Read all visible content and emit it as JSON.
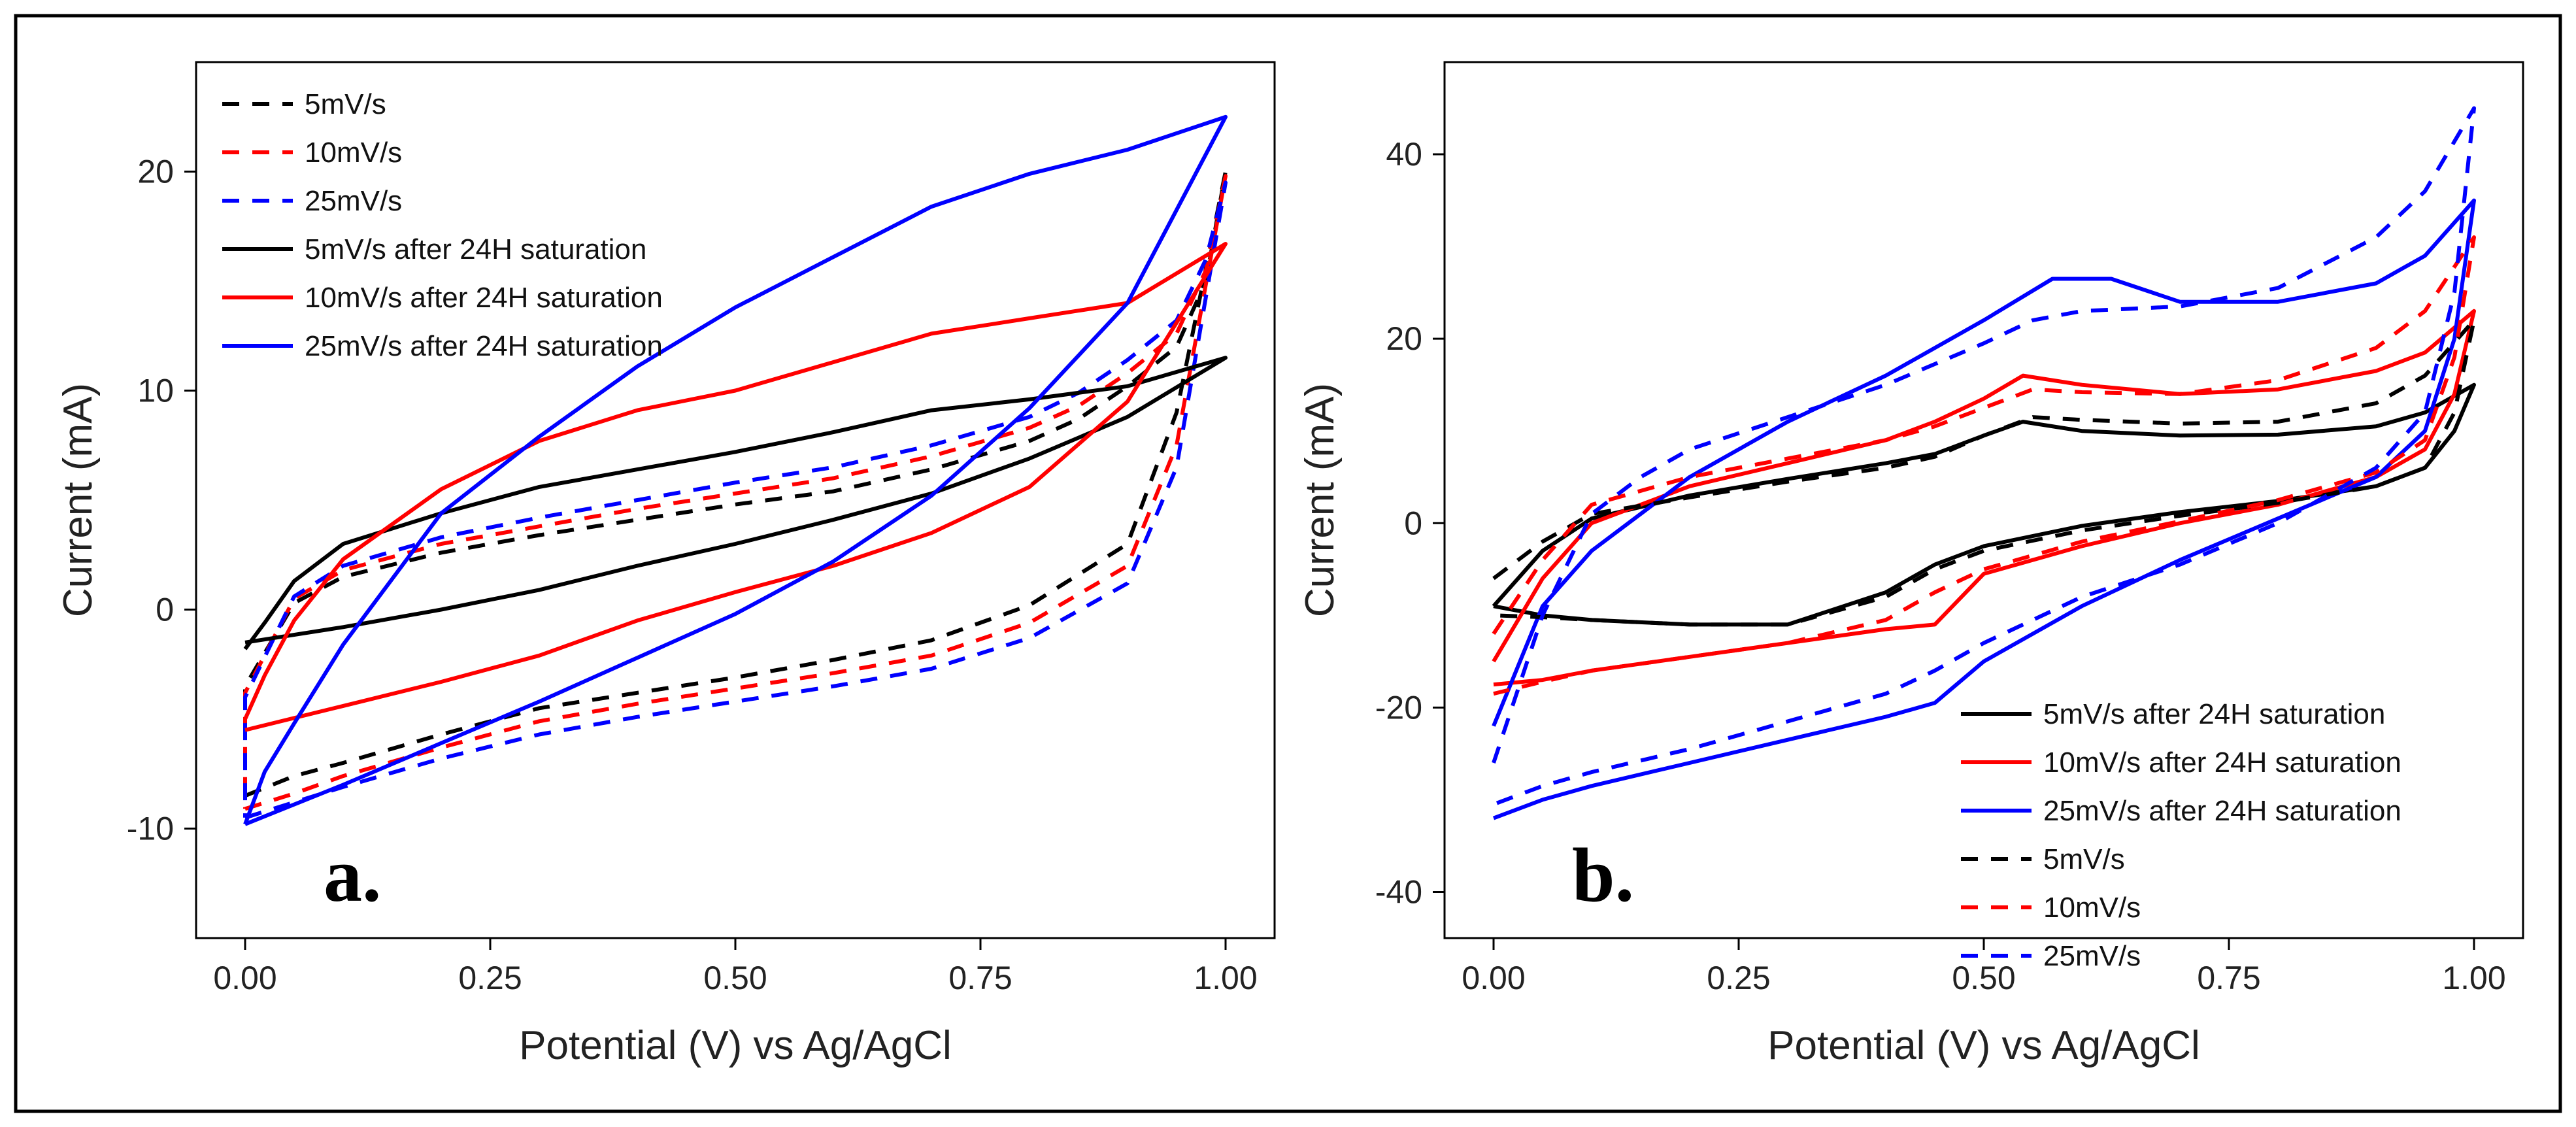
{
  "figure": {
    "outer_border_color": "#000000"
  },
  "colors": {
    "black": "#000000",
    "red": "#ff0000",
    "blue": "#0000ff"
  },
  "chart_data": [
    {
      "id": "panel-a",
      "type": "line",
      "panel_label": "a.",
      "title": "",
      "xlabel": "Potential (V) vs Ag/AgCl",
      "ylabel": "Current (mA)",
      "xlim": [
        -0.05,
        1.05
      ],
      "ylim": [
        -15,
        25
      ],
      "xticks": [
        "0.00",
        "0.25",
        "0.50",
        "0.75",
        "1.00"
      ],
      "xtick_values": [
        0,
        0.25,
        0.5,
        0.75,
        1.0
      ],
      "yticks": [
        "-10",
        "0",
        "10",
        "20"
      ],
      "ytick_values": [
        -10,
        0,
        10,
        20
      ],
      "grid": false,
      "legend_position": "top-left",
      "series": [
        {
          "name": "5mV/s",
          "color": "#000000",
          "dash": true,
          "x": [
            0.0,
            0.05,
            0.1,
            0.2,
            0.3,
            0.4,
            0.5,
            0.6,
            0.7,
            0.8,
            0.9,
            0.95,
            1.0,
            0.98,
            0.95,
            0.9,
            0.85,
            0.8,
            0.7,
            0.6,
            0.5,
            0.4,
            0.3,
            0.2,
            0.1,
            0.05,
            0.0,
            0.0
          ],
          "y": [
            -8.5,
            -7.6,
            -7.0,
            -5.7,
            -4.5,
            -3.8,
            -3.1,
            -2.3,
            -1.4,
            0.2,
            3.0,
            9.0,
            20.0,
            15.0,
            12.0,
            10.2,
            8.7,
            7.7,
            6.4,
            5.4,
            4.8,
            4.1,
            3.4,
            2.6,
            1.5,
            0.3,
            -3.5,
            -8.5
          ]
        },
        {
          "name": "10mV/s",
          "color": "#ff0000",
          "dash": true,
          "x": [
            0.0,
            0.05,
            0.1,
            0.2,
            0.3,
            0.4,
            0.5,
            0.6,
            0.7,
            0.8,
            0.9,
            0.95,
            1.0,
            0.98,
            0.95,
            0.9,
            0.85,
            0.8,
            0.7,
            0.6,
            0.5,
            0.4,
            0.3,
            0.2,
            0.1,
            0.05,
            0.0,
            0.0
          ],
          "y": [
            -9.1,
            -8.4,
            -7.6,
            -6.3,
            -5.1,
            -4.3,
            -3.6,
            -2.9,
            -2.1,
            -0.6,
            2.0,
            7.5,
            19.8,
            15.5,
            12.6,
            10.8,
            9.3,
            8.3,
            7.0,
            6.0,
            5.3,
            4.6,
            3.8,
            3.0,
            1.8,
            0.5,
            -3.8,
            -9.1
          ]
        },
        {
          "name": "25mV/s",
          "color": "#0000ff",
          "dash": true,
          "x": [
            0.0,
            0.05,
            0.1,
            0.2,
            0.3,
            0.4,
            0.5,
            0.6,
            0.7,
            0.8,
            0.9,
            0.95,
            1.0,
            0.98,
            0.95,
            0.9,
            0.85,
            0.8,
            0.7,
            0.6,
            0.5,
            0.4,
            0.3,
            0.2,
            0.1,
            0.05,
            0.0,
            0.0
          ],
          "y": [
            -9.5,
            -8.8,
            -8.1,
            -6.8,
            -5.7,
            -4.9,
            -4.2,
            -3.5,
            -2.7,
            -1.3,
            1.2,
            6.5,
            19.5,
            16.0,
            13.2,
            11.4,
            9.9,
            8.8,
            7.5,
            6.5,
            5.8,
            5.0,
            4.2,
            3.3,
            2.0,
            0.6,
            -4.0,
            -9.5
          ]
        },
        {
          "name": "5mV/s after 24H saturation",
          "color": "#000000",
          "dash": false,
          "x": [
            0.0,
            0.1,
            0.2,
            0.3,
            0.4,
            0.5,
            0.6,
            0.7,
            0.8,
            0.9,
            1.0,
            0.9,
            0.8,
            0.7,
            0.6,
            0.5,
            0.4,
            0.3,
            0.2,
            0.1,
            0.05,
            0.02,
            0.0
          ],
          "y": [
            -1.5,
            -0.8,
            0.0,
            0.9,
            2.0,
            3.0,
            4.1,
            5.3,
            6.9,
            8.8,
            11.5,
            10.2,
            9.6,
            9.1,
            8.1,
            7.2,
            6.4,
            5.6,
            4.4,
            3.0,
            1.3,
            -0.6,
            -1.8
          ]
        },
        {
          "name": "10mV/s after 24H saturation",
          "color": "#ff0000",
          "dash": false,
          "x": [
            0.0,
            0.1,
            0.2,
            0.3,
            0.4,
            0.5,
            0.6,
            0.7,
            0.8,
            0.9,
            1.0,
            0.9,
            0.8,
            0.7,
            0.6,
            0.5,
            0.4,
            0.3,
            0.2,
            0.1,
            0.05,
            0.02,
            0.0
          ],
          "y": [
            -5.5,
            -4.4,
            -3.3,
            -2.1,
            -0.5,
            0.8,
            2.0,
            3.5,
            5.6,
            9.5,
            16.7,
            14.0,
            13.3,
            12.6,
            11.3,
            10.0,
            9.1,
            7.7,
            5.5,
            2.3,
            -0.5,
            -3.0,
            -5.0
          ]
        },
        {
          "name": "25mV/s after 24H saturation",
          "color": "#0000ff",
          "dash": false,
          "x": [
            0.0,
            0.1,
            0.2,
            0.3,
            0.4,
            0.5,
            0.6,
            0.7,
            0.8,
            0.9,
            1.0,
            0.9,
            0.8,
            0.7,
            0.6,
            0.5,
            0.4,
            0.3,
            0.2,
            0.1,
            0.05,
            0.02,
            0.0
          ],
          "y": [
            -9.8,
            -8.0,
            -6.1,
            -4.2,
            -2.2,
            -0.2,
            2.2,
            5.2,
            9.2,
            14.0,
            22.5,
            21.0,
            19.9,
            18.4,
            16.1,
            13.8,
            11.1,
            7.9,
            4.4,
            -1.6,
            -5.2,
            -7.4,
            -9.8
          ]
        }
      ]
    },
    {
      "id": "panel-b",
      "type": "line",
      "panel_label": "b.",
      "title": "",
      "xlabel": "Potential (V) vs Ag/AgCl",
      "ylabel": "Current (mA)",
      "xlim": [
        -0.05,
        1.05
      ],
      "ylim": [
        -45,
        50
      ],
      "xticks": [
        "0.00",
        "0.25",
        "0.50",
        "0.75",
        "1.00"
      ],
      "xtick_values": [
        0,
        0.25,
        0.5,
        0.75,
        1.0
      ],
      "yticks": [
        "-40",
        "-20",
        "0",
        "20",
        "40"
      ],
      "ytick_values": [
        -40,
        -20,
        0,
        20,
        40
      ],
      "grid": false,
      "legend_position": "bottom-right",
      "series": [
        {
          "name": "5mV/s after 24H saturation",
          "color": "#000000",
          "dash": false,
          "x": [
            0.0,
            0.05,
            0.1,
            0.2,
            0.3,
            0.4,
            0.45,
            0.5,
            0.54,
            0.6,
            0.7,
            0.8,
            0.9,
            0.95,
            1.0,
            0.98,
            0.95,
            0.9,
            0.8,
            0.7,
            0.6,
            0.5,
            0.45,
            0.4,
            0.3,
            0.2,
            0.1,
            0.05,
            0.0
          ],
          "y": [
            -9.0,
            -3.0,
            0.5,
            3.0,
            4.8,
            6.5,
            7.5,
            9.5,
            11.0,
            10.0,
            9.5,
            9.6,
            10.5,
            12.0,
            15.0,
            10.0,
            6.0,
            4.0,
            2.4,
            1.2,
            -0.3,
            -2.5,
            -4.5,
            -7.5,
            -11.0,
            -11.0,
            -10.5,
            -10.0,
            -9.0
          ]
        },
        {
          "name": "10mV/s after 24H saturation",
          "color": "#ff0000",
          "dash": false,
          "x": [
            0.0,
            0.05,
            0.1,
            0.2,
            0.3,
            0.4,
            0.45,
            0.5,
            0.54,
            0.6,
            0.7,
            0.8,
            0.9,
            0.95,
            1.0,
            0.98,
            0.95,
            0.9,
            0.8,
            0.7,
            0.6,
            0.5,
            0.45,
            0.4,
            0.3,
            0.2,
            0.1,
            0.05,
            0.0
          ],
          "y": [
            -15.0,
            -6.0,
            0.0,
            4.0,
            6.5,
            9.0,
            11.0,
            13.5,
            16.0,
            15.0,
            14.0,
            14.5,
            16.5,
            18.5,
            23.0,
            14.0,
            8.0,
            5.0,
            2.0,
            0.0,
            -2.5,
            -5.5,
            -11.0,
            -11.5,
            -13.0,
            -14.5,
            -16.0,
            -17.0,
            -17.5
          ]
        },
        {
          "name": "25mV/s after 24H saturation",
          "color": "#0000ff",
          "dash": false,
          "x": [
            0.0,
            0.05,
            0.1,
            0.15,
            0.2,
            0.3,
            0.4,
            0.5,
            0.57,
            0.63,
            0.7,
            0.8,
            0.9,
            0.95,
            1.0,
            0.98,
            0.95,
            0.9,
            0.8,
            0.7,
            0.6,
            0.5,
            0.45,
            0.4,
            0.3,
            0.2,
            0.1,
            0.05,
            0.0
          ],
          "y": [
            -22.0,
            -9.0,
            -3.0,
            1.0,
            5.0,
            11.0,
            16.0,
            22.0,
            26.5,
            26.5,
            24.0,
            24.0,
            26.0,
            29.0,
            35.0,
            20.0,
            10.0,
            5.0,
            0.5,
            -4.0,
            -9.0,
            -15.0,
            -19.5,
            -21.0,
            -23.5,
            -26.0,
            -28.5,
            -30.0,
            -32.0
          ]
        },
        {
          "name": "5mV/s",
          "color": "#000000",
          "dash": true,
          "x": [
            0.0,
            0.05,
            0.1,
            0.2,
            0.3,
            0.4,
            0.45,
            0.5,
            0.55,
            0.6,
            0.7,
            0.8,
            0.9,
            0.95,
            1.0,
            0.98,
            0.95,
            0.9,
            0.8,
            0.7,
            0.6,
            0.5,
            0.45,
            0.4,
            0.3,
            0.2,
            0.1,
            0.05,
            0.0
          ],
          "y": [
            -6.0,
            -2.0,
            1.0,
            2.8,
            4.5,
            6.0,
            7.2,
            9.5,
            11.5,
            11.2,
            10.8,
            11.0,
            13.0,
            16.0,
            22.0,
            12.0,
            6.0,
            4.0,
            2.2,
            0.8,
            -0.8,
            -3.0,
            -5.0,
            -8.0,
            -11.0,
            -11.0,
            -10.5,
            -10.2,
            -10.0
          ]
        },
        {
          "name": "10mV/s",
          "color": "#ff0000",
          "dash": true,
          "x": [
            0.0,
            0.05,
            0.1,
            0.2,
            0.3,
            0.4,
            0.45,
            0.5,
            0.55,
            0.6,
            0.7,
            0.8,
            0.9,
            0.95,
            1.0,
            0.98,
            0.95,
            0.9,
            0.8,
            0.7,
            0.6,
            0.5,
            0.45,
            0.4,
            0.3,
            0.2,
            0.1,
            0.05,
            0.0
          ],
          "y": [
            -12.0,
            -4.0,
            2.0,
            5.0,
            7.0,
            9.0,
            10.5,
            12.5,
            14.5,
            14.2,
            14.0,
            15.5,
            19.0,
            23.0,
            31.0,
            18.0,
            9.0,
            5.5,
            2.5,
            0.2,
            -2.0,
            -5.0,
            -7.5,
            -10.5,
            -13.0,
            -14.5,
            -16.0,
            -17.2,
            -18.5
          ]
        },
        {
          "name": "25mV/s",
          "color": "#0000ff",
          "dash": true,
          "x": [
            0.0,
            0.05,
            0.1,
            0.15,
            0.2,
            0.3,
            0.4,
            0.5,
            0.55,
            0.6,
            0.7,
            0.8,
            0.9,
            0.95,
            1.0,
            0.98,
            0.95,
            0.9,
            0.8,
            0.7,
            0.6,
            0.5,
            0.45,
            0.4,
            0.3,
            0.2,
            0.1,
            0.05,
            0.0
          ],
          "y": [
            -26.0,
            -10.0,
            1.0,
            5.0,
            8.0,
            11.5,
            15.0,
            19.5,
            22.0,
            23.0,
            23.5,
            25.5,
            31.0,
            36.0,
            45.0,
            25.0,
            12.0,
            6.0,
            0.0,
            -4.5,
            -8.0,
            -13.0,
            -16.0,
            -18.5,
            -21.5,
            -24.5,
            -27.0,
            -28.5,
            -30.5
          ]
        }
      ]
    }
  ]
}
